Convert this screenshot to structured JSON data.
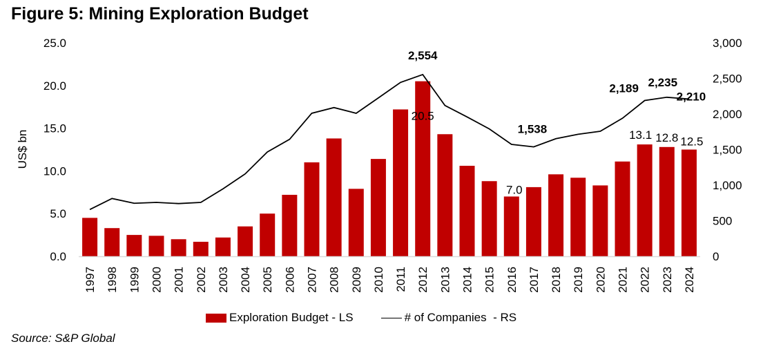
{
  "figure": {
    "title": "Figure 5: Mining Exploration Budget",
    "source": "Source: S&P Global"
  },
  "colors": {
    "bar": "#c00000",
    "line": "#000000",
    "axis": "#d9d9d9"
  },
  "legend": {
    "bar_label": "Exploration Budget - LS",
    "line_label": "# of Companies  - RS"
  },
  "chart_data": {
    "type": "bar",
    "title": "Figure 5: Mining Exploration Budget",
    "xlabel": "",
    "ylabel": "US$ bn",
    "ylabel_right": "",
    "ylim": [
      0,
      25
    ],
    "ylim_right": [
      0,
      3000
    ],
    "yticks": [
      "0.0",
      "5.0",
      "10.0",
      "15.0",
      "20.0",
      "25.0"
    ],
    "yticks_right": [
      "0",
      "500",
      "1,000",
      "1,500",
      "2,000",
      "2,500",
      "3,000"
    ],
    "grid": false,
    "legend_position": "bottom",
    "categories": [
      "1997",
      "1998",
      "1999",
      "2000",
      "2001",
      "2002",
      "2003",
      "2004",
      "2005",
      "2006",
      "2007",
      "2008",
      "2009",
      "2010",
      "2011",
      "2012",
      "2013",
      "2014",
      "2015",
      "2016",
      "2017",
      "2018",
      "2019",
      "2020",
      "2021",
      "2022",
      "2023",
      "2024"
    ],
    "series": [
      {
        "name": "Exploration Budget - LS",
        "type": "bar",
        "axis": "left",
        "values": [
          4.5,
          3.3,
          2.5,
          2.4,
          2.0,
          1.7,
          2.2,
          3.5,
          5.0,
          7.2,
          11.0,
          13.8,
          7.9,
          11.4,
          17.2,
          20.5,
          14.3,
          10.6,
          8.8,
          7.0,
          8.1,
          9.6,
          9.2,
          8.3,
          11.1,
          13.1,
          12.8,
          12.5
        ],
        "data_labels": {
          "2012": "20.5",
          "2016": "7.0",
          "2022": "13.1",
          "2023": "12.8",
          "2024": "12.5"
        }
      },
      {
        "name": "# of Companies  - RS",
        "type": "line",
        "axis": "right",
        "values": [
          657,
          812,
          745,
          757,
          741,
          757,
          948,
          1158,
          1466,
          1644,
          2010,
          2090,
          2010,
          2226,
          2444,
          2554,
          2120,
          1958,
          1790,
          1573,
          1538,
          1653,
          1715,
          1757,
          1940,
          2189,
          2235,
          2210
        ],
        "data_labels": {
          "2012": "2,554",
          "2017": "1,538",
          "2022": "2,189",
          "2023": "2,235",
          "2024": "2,210"
        }
      }
    ]
  }
}
